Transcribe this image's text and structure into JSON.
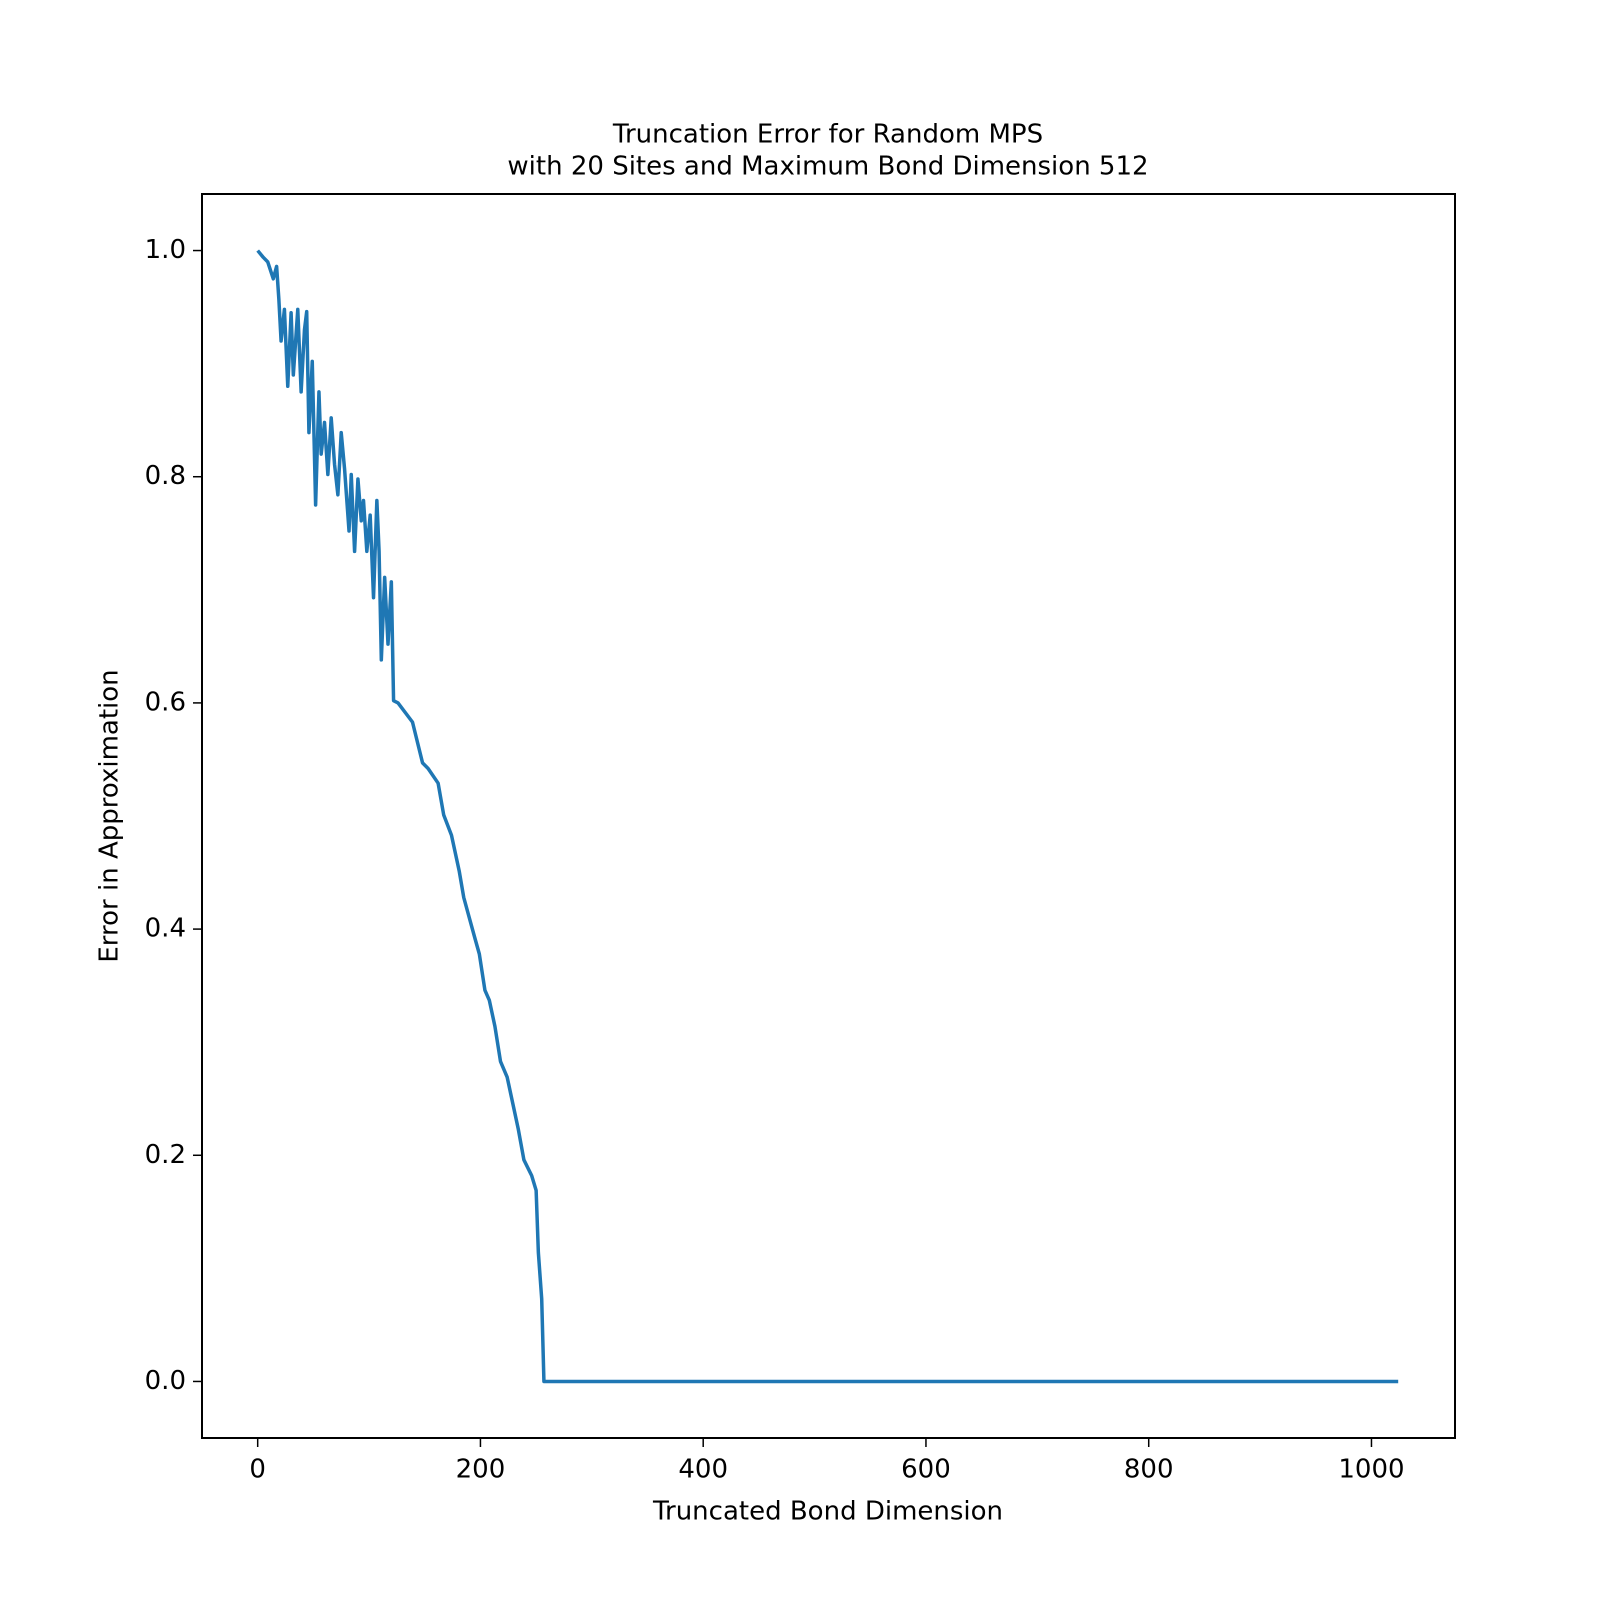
{
  "chart_data": {
    "type": "line",
    "title": [
      "Truncation Error for Random MPS",
      "with 20 Sites and Maximum Bond Dimension 512"
    ],
    "x_label": "Truncated Bond Dimension",
    "y_label": "Error in Approximation",
    "x": [
      0,
      5,
      9,
      14,
      17,
      19,
      21,
      24,
      27,
      30,
      32,
      36,
      39,
      42,
      44,
      46,
      49,
      52,
      55,
      57,
      60,
      63,
      66,
      69,
      72,
      75,
      78,
      82,
      84,
      87,
      90,
      93,
      95,
      98,
      101,
      104,
      107,
      109,
      111,
      114,
      117,
      120,
      122,
      126,
      139,
      148,
      153,
      162,
      167,
      174,
      181,
      185,
      190,
      195,
      199,
      204,
      208,
      213,
      218,
      224,
      229,
      234,
      239,
      246,
      250,
      252,
      255,
      257,
      1024
    ],
    "series": [
      {
        "name": "Error",
        "color": "#1f77b4",
        "values": [
          1.0,
          0.994,
          0.99,
          0.975,
          0.986,
          0.957,
          0.92,
          0.948,
          0.88,
          0.945,
          0.89,
          0.948,
          0.875,
          0.93,
          0.946,
          0.839,
          0.902,
          0.775,
          0.875,
          0.82,
          0.848,
          0.802,
          0.852,
          0.811,
          0.784,
          0.839,
          0.807,
          0.752,
          0.802,
          0.734,
          0.798,
          0.761,
          0.779,
          0.734,
          0.766,
          0.693,
          0.779,
          0.734,
          0.638,
          0.711,
          0.652,
          0.707,
          0.602,
          0.6,
          0.583,
          0.547,
          0.542,
          0.529,
          0.501,
          0.483,
          0.451,
          0.428,
          0.41,
          0.392,
          0.378,
          0.346,
          0.337,
          0.314,
          0.283,
          0.269,
          0.246,
          0.223,
          0.196,
          0.182,
          0.169,
          0.114,
          0.073,
          0,
          0
        ]
      }
    ],
    "xlim": [
      -50,
      1075
    ],
    "ylim": [
      -0.05,
      1.05
    ],
    "xticks": [
      0,
      200,
      400,
      600,
      800,
      1000
    ],
    "yticks": [
      {
        "value": 0,
        "label": "0.0"
      },
      0.2,
      0.4,
      0.6,
      0.8,
      {
        "value": 1,
        "label": "1.0"
      }
    ],
    "grid": false
  }
}
